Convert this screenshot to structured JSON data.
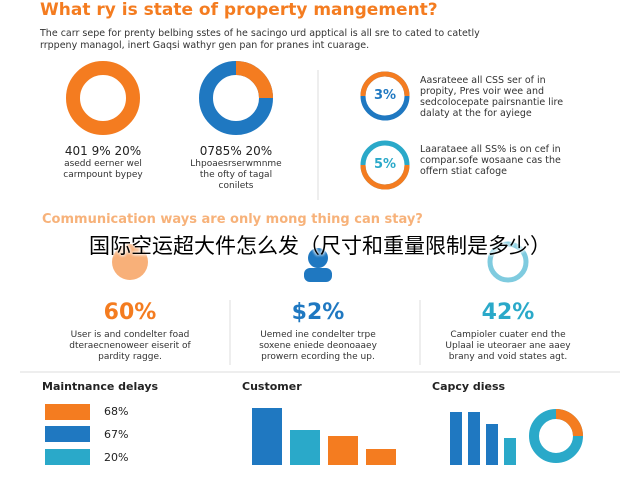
{
  "header": {
    "title": "What ry is state of property mangement?",
    "subtitle": [
      "The carr sepe for prenty belbing sstes of he sacingo urd apptical is all sre to cated to catetly",
      "rrppeny managol, inert Gaqsi wathyr gen pan for pranes int cuarage."
    ]
  },
  "donuts": [
    {
      "label": "401 9% 20%",
      "text": [
        "asedd eerner wel",
        "carmpount bypey"
      ]
    },
    {
      "label": "0785% 20%",
      "text": [
        "Lhpoaesrserwmnme",
        "the ofty of tagal",
        "conilets"
      ]
    }
  ],
  "side_items": [
    {
      "badge": "3%",
      "text": [
        "Aasrateee all CSS ser of in",
        "propity, Pres voir wee and",
        "sedcolocepate pairsnantie lire",
        "dalaty at the for ayiege"
      ]
    },
    {
      "badge": "5%",
      "text": [
        "Laarataee all SS% is on cef in",
        "compar.sofe wosaane cas the",
        "offern stiat cafoge"
      ]
    }
  ],
  "section_heading": "Communication ways are only mong thing can stay?",
  "overlay_caption": "国际空运超大件怎么发（尺寸和重量限制是多少）",
  "stats": [
    {
      "value": "60%",
      "text": [
        "User is and condelter foad",
        "dteraecnenoweer eiserit of",
        "pardity ragge."
      ]
    },
    {
      "value": "$2%",
      "text": [
        "Uemed ine condelter trpe",
        "soxene eniede deonoaaey",
        "prowern ecording the up."
      ]
    },
    {
      "value": "42%",
      "text": [
        "Campioler cuater end the",
        "Uplaal ie uteoraer ane aaey",
        "brany and void states agt."
      ]
    }
  ],
  "panels": [
    {
      "title": "Maintnance delays",
      "labels": [
        "68%",
        "67%",
        "20%"
      ]
    },
    {
      "title": "Customer"
    },
    {
      "title": "Capcy diess"
    }
  ]
}
